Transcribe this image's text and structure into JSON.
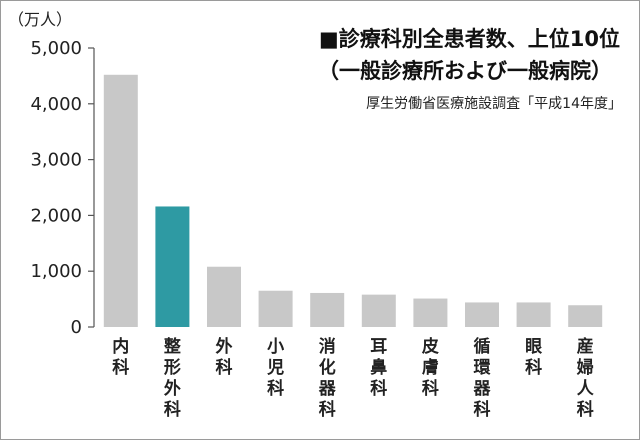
{
  "chart_data": {
    "type": "bar",
    "title": "■診療科別全患者数、上位10位",
    "subtitle": "（一般診療所および一般病院）",
    "source": "厚生労働省医療施設調査「平成14年度」",
    "unit_label": "（万人）",
    "categories": [
      "内科",
      "整形外科",
      "外科",
      "小児科",
      "消化器科",
      "耳鼻科",
      "皮膚科",
      "循環器科",
      "眼科",
      "産婦人科"
    ],
    "values": [
      4520,
      2160,
      1080,
      650,
      610,
      580,
      510,
      440,
      440,
      390
    ],
    "ylim": [
      0,
      5000
    ],
    "yticks": [
      0,
      1000,
      2000,
      3000,
      4000,
      5000
    ],
    "ytick_labels": [
      "0",
      "1,000",
      "2,000",
      "3,000",
      "4,000",
      "5,000"
    ],
    "highlight_index": 1,
    "colors": {
      "default": "#c8c8c8",
      "highlight": "#2e9aa3",
      "axis": "#555555"
    },
    "grid": false
  }
}
